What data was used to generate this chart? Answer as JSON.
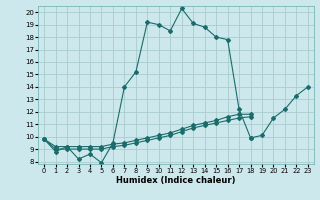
{
  "xlabel": "Humidex (Indice chaleur)",
  "background_color": "#cce8ec",
  "grid_color": "#aacccc",
  "line_color": "#1a6b6b",
  "xlim": [
    -0.5,
    23.5
  ],
  "ylim": [
    7.8,
    20.5
  ],
  "xticks": [
    0,
    1,
    2,
    3,
    4,
    5,
    6,
    7,
    8,
    9,
    10,
    11,
    12,
    13,
    14,
    15,
    16,
    17,
    18,
    19,
    20,
    21,
    22,
    23
  ],
  "yticks": [
    8,
    9,
    10,
    11,
    12,
    13,
    14,
    15,
    16,
    17,
    18,
    19,
    20
  ],
  "line1_x": [
    0,
    1,
    2,
    3,
    4,
    5,
    6,
    7,
    8,
    9,
    10,
    11,
    12,
    13,
    14,
    15,
    16,
    17,
    18
  ],
  "line1_y": [
    9.8,
    8.8,
    9.2,
    8.2,
    8.6,
    7.9,
    9.5,
    14.0,
    15.2,
    19.2,
    19.0,
    18.5,
    20.3,
    19.1,
    18.8,
    18.0,
    17.8,
    12.2,
    9.9
  ],
  "line2_x": [
    18,
    19,
    20,
    21,
    22,
    23
  ],
  "line2_y": [
    9.9,
    10.1,
    11.5,
    12.2,
    13.3,
    14.0
  ],
  "line3_x": [
    0,
    1,
    2,
    3,
    4,
    5,
    6,
    7,
    8,
    9,
    10,
    11,
    12,
    13,
    14,
    15,
    16,
    17,
    18
  ],
  "line3_y": [
    9.8,
    9.2,
    9.2,
    9.2,
    9.2,
    9.2,
    9.4,
    9.5,
    9.7,
    9.9,
    10.1,
    10.3,
    10.6,
    10.9,
    11.1,
    11.3,
    11.6,
    11.8,
    11.8
  ],
  "line4_x": [
    0,
    1,
    2,
    3,
    4,
    5,
    6,
    7,
    8,
    9,
    10,
    11,
    12,
    13,
    14,
    15,
    16,
    17,
    18
  ],
  "line4_y": [
    9.8,
    9.0,
    9.0,
    9.0,
    9.0,
    9.0,
    9.2,
    9.3,
    9.5,
    9.7,
    9.9,
    10.1,
    10.4,
    10.7,
    10.9,
    11.1,
    11.3,
    11.5,
    11.6
  ]
}
